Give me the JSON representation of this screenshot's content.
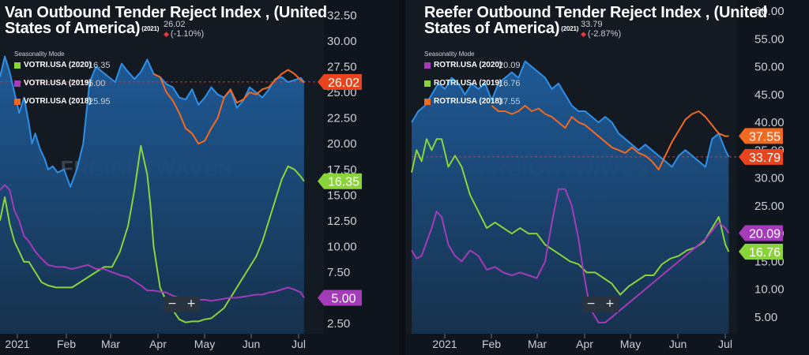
{
  "left": {
    "title_line1": "Van Outbound Tender Reject Index , (United",
    "title_line2": "States of America)",
    "title_tag": "(2021)",
    "current_value": "26.02",
    "current_change": "(-1.10%)",
    "seasonality_label": "Seasonality Mode",
    "legend": [
      {
        "name": "VOTRI.USA (2020)",
        "value": "16.35",
        "color": "#8bd33a"
      },
      {
        "name": "VOTRI.USA (2019)",
        "value": "5.00",
        "color": "#a43bb8"
      },
      {
        "name": "VOTRI.USA (2018)",
        "value": "25.95",
        "color": "#f26a22"
      }
    ],
    "badges": [
      {
        "text": "26.02",
        "color": "#e8441e",
        "value": 26.02
      },
      {
        "text": "16.35",
        "color": "#8bd33a",
        "value": 16.35
      },
      {
        "text": "5.00",
        "color": "#a43bb8",
        "value": 5.0
      }
    ],
    "zoom_minus": "−",
    "zoom_plus": "+"
  },
  "right": {
    "title_line1": "Reefer Outbound Tender Reject Index , (United",
    "title_line2": "States of America)",
    "title_tag": "(2021)",
    "current_value": "33.79",
    "current_change": "(-2.87%)",
    "seasonality_label": "Seasonality Mode",
    "legend": [
      {
        "name": "ROTRI.USA (2020)",
        "value": "20.09",
        "color": "#a43bb8"
      },
      {
        "name": "ROTRI.USA (2019)",
        "value": "16.76",
        "color": "#8bd33a"
      },
      {
        "name": "ROTRI.USA (2018)",
        "value": "37.55",
        "color": "#f26a22"
      }
    ],
    "badges": [
      {
        "text": "37.55",
        "color": "#f26a22",
        "value": 37.55
      },
      {
        "text": "33.79",
        "color": "#e8441e",
        "value": 33.79
      },
      {
        "text": "20.09",
        "color": "#a43bb8",
        "value": 20.09
      },
      {
        "text": "16.76",
        "color": "#8bd33a",
        "value": 16.76
      }
    ],
    "zoom_minus": "−",
    "zoom_plus": "+"
  },
  "watermark": {
    "line1": "FREIGHTWAVES",
    "line2": "SONAR"
  },
  "chart_data": [
    {
      "type": "line",
      "title": "Van Outbound Tender Reject Index , (United States of America)",
      "x_labels": [
        "2021",
        "Feb",
        "Mar",
        "Apr",
        "May",
        "Jun",
        "Jul"
      ],
      "y_ticks": [
        "2.50",
        "5.00",
        "7.50",
        "10.00",
        "12.50",
        "15.00",
        "17.50",
        "20.00",
        "22.50",
        "25.00",
        "27.50",
        "30.00",
        "32.50"
      ],
      "ylim": [
        1.5,
        34
      ],
      "x_range": [
        0,
        195
      ],
      "grid": false,
      "legend_position": "top-left",
      "series": [
        {
          "name": "VOTRI.USA (2021)",
          "color": "#2f8fe8",
          "area": true,
          "x": [
            0,
            3,
            6,
            9,
            12,
            15,
            18,
            20,
            22,
            25,
            28,
            30,
            33,
            36,
            40,
            44,
            48,
            52,
            56,
            60,
            64,
            68,
            72,
            76,
            80,
            84,
            88,
            92,
            96,
            100,
            104,
            108,
            112,
            116,
            120,
            124,
            128,
            132,
            136,
            140,
            144,
            148,
            152,
            156,
            160,
            164,
            168,
            172,
            176,
            180,
            184,
            188,
            190
          ],
          "y": [
            26.5,
            28.5,
            27,
            25,
            23,
            24.5,
            22,
            20,
            21,
            19.5,
            18.5,
            17.5,
            17.8,
            17.2,
            17.5,
            15.8,
            17.5,
            20,
            26,
            27.5,
            27,
            26.5,
            26,
            27.8,
            27,
            26.3,
            27,
            28.2,
            26.8,
            26.5,
            25.8,
            25.5,
            24.5,
            24.3,
            25.3,
            23.8,
            24.5,
            25.5,
            24.8,
            24.5,
            25.2,
            23.5,
            24.2,
            25.5,
            25,
            24.5,
            25.3,
            26.3,
            26.5,
            26,
            26.2,
            26.4,
            26.02
          ]
        },
        {
          "name": "VOTRI.USA (2018)",
          "color": "#f26a22",
          "x": [
            96,
            100,
            104,
            108,
            112,
            116,
            120,
            124,
            128,
            132,
            136,
            140,
            144,
            148,
            152,
            156,
            160,
            164,
            168,
            172,
            176,
            180,
            184,
            188,
            190
          ],
          "y": [
            26.8,
            26.5,
            25,
            24.2,
            23,
            21.5,
            21,
            20,
            20.3,
            21.5,
            22.5,
            24.5,
            25.3,
            24,
            24.3,
            25,
            24.8,
            25.3,
            25.5,
            26.2,
            26.8,
            27.2,
            26.8,
            26.2,
            25.95
          ]
        },
        {
          "name": "VOTRI.USA (2020)",
          "color": "#8bd33a",
          "x": [
            0,
            3,
            6,
            9,
            12,
            15,
            18,
            22,
            26,
            30,
            35,
            40,
            45,
            50,
            55,
            60,
            65,
            70,
            75,
            80,
            84,
            88,
            92,
            94,
            96,
            98,
            100,
            103,
            106,
            108,
            112,
            116,
            120,
            124,
            128,
            132,
            136,
            140,
            144,
            148,
            152,
            156,
            160,
            164,
            168,
            172,
            176,
            180,
            184,
            188,
            190
          ],
          "y": [
            12.5,
            14.8,
            12.2,
            10.5,
            9.5,
            8.5,
            8.5,
            7.5,
            6.5,
            6.2,
            6.0,
            6.0,
            6.0,
            6.5,
            7.0,
            7.5,
            8.0,
            8.0,
            9.5,
            12.0,
            15.5,
            19.8,
            17.0,
            14.0,
            10.0,
            8.0,
            6.0,
            5.0,
            4.5,
            3.8,
            2.9,
            2.6,
            2.7,
            2.7,
            2.9,
            3.0,
            3.5,
            4.0,
            5.0,
            6.0,
            7.0,
            8.0,
            9.0,
            10.5,
            12.5,
            14.5,
            16.5,
            17.8,
            17.5,
            16.8,
            16.35
          ]
        },
        {
          "name": "VOTRI.USA (2019)",
          "color": "#a43bb8",
          "x": [
            0,
            3,
            6,
            9,
            12,
            15,
            18,
            22,
            26,
            30,
            35,
            40,
            45,
            50,
            55,
            60,
            65,
            70,
            75,
            80,
            84,
            88,
            92,
            96,
            100,
            104,
            108,
            112,
            116,
            120,
            124,
            128,
            132,
            136,
            140,
            144,
            148,
            152,
            156,
            160,
            164,
            168,
            172,
            176,
            180,
            184,
            188,
            190
          ],
          "y": [
            15.5,
            16,
            15.5,
            13.5,
            12.5,
            11,
            10.5,
            9.5,
            8.8,
            8.2,
            8.0,
            8.0,
            7.8,
            8.0,
            8.2,
            7.8,
            7.8,
            7.5,
            7.2,
            7.0,
            6.6,
            6.2,
            5.7,
            5.7,
            5.6,
            5.5,
            5.2,
            5.0,
            4.9,
            4.8,
            4.8,
            4.8,
            4.7,
            4.8,
            4.9,
            5.0,
            5.0,
            5.1,
            5.2,
            5.3,
            5.3,
            5.5,
            5.6,
            5.8,
            6.0,
            5.8,
            5.5,
            5.0
          ]
        }
      ]
    },
    {
      "type": "line",
      "title": "Reefer Outbound Tender Reject Index , (United States of America)",
      "x_labels": [
        "2021",
        "Feb",
        "Mar",
        "Apr",
        "May",
        "Jun",
        "Jul"
      ],
      "y_ticks": [
        "5.00",
        "10.00",
        "15.00",
        "20.00",
        "25.00",
        "30.00",
        "35.00",
        "40.00",
        "45.00",
        "50.00",
        "55.00",
        "60.00"
      ],
      "ylim": [
        2,
        62
      ],
      "x_range": [
        0,
        195
      ],
      "grid": false,
      "legend_position": "top-left",
      "series": [
        {
          "name": "ROTRI.USA (2021)",
          "color": "#2f8fe8",
          "area": true,
          "x": [
            0,
            4,
            8,
            12,
            16,
            20,
            24,
            28,
            32,
            36,
            40,
            44,
            48,
            52,
            56,
            60,
            64,
            68,
            72,
            76,
            80,
            84,
            88,
            92,
            96,
            100,
            104,
            108,
            112,
            116,
            120,
            124,
            128,
            132,
            136,
            140,
            144,
            148,
            152,
            156,
            160,
            164,
            168,
            172,
            176,
            180,
            184,
            188,
            190
          ],
          "y": [
            40,
            42,
            43,
            45,
            47,
            46,
            48,
            47,
            45,
            47,
            46,
            47,
            44,
            47,
            48,
            49,
            48,
            51,
            50,
            49,
            48,
            46,
            47,
            45,
            43,
            42,
            42,
            41,
            40,
            41,
            40,
            38,
            37,
            36,
            35,
            36,
            35,
            34,
            33,
            32,
            34,
            35,
            34,
            33,
            32,
            37,
            38,
            35,
            33.79
          ]
        },
        {
          "name": "ROTRI.USA (2018)",
          "color": "#f26a22",
          "x": [
            48,
            52,
            56,
            60,
            64,
            68,
            72,
            76,
            80,
            84,
            88,
            92,
            96,
            100,
            104,
            108,
            112,
            116,
            120,
            124,
            128,
            132,
            136,
            140,
            144,
            148,
            152,
            156,
            160,
            164,
            168,
            172,
            176,
            180,
            184,
            188,
            190
          ],
          "y": [
            43,
            42,
            42,
            41.5,
            42,
            43,
            42,
            42.5,
            41.5,
            41,
            40,
            39,
            41,
            40,
            39.5,
            38.5,
            37.5,
            36.5,
            35.5,
            35,
            34.5,
            35.5,
            34.5,
            34,
            33,
            31.5,
            34,
            36.5,
            38.5,
            40.5,
            41.5,
            42,
            41,
            39.5,
            38,
            37.5,
            37.55
          ]
        },
        {
          "name": "ROTRI.USA (2019)",
          "color": "#8bd33a",
          "x": [
            0,
            3,
            6,
            9,
            12,
            15,
            18,
            22,
            26,
            30,
            35,
            40,
            45,
            50,
            55,
            60,
            65,
            70,
            75,
            80,
            85,
            90,
            95,
            100,
            105,
            110,
            115,
            120,
            125,
            130,
            135,
            140,
            145,
            150,
            155,
            160,
            165,
            170,
            175,
            180,
            184,
            188,
            190
          ],
          "y": [
            31,
            35,
            33,
            37,
            35,
            37,
            37,
            32,
            34,
            32,
            27,
            24,
            21,
            22,
            21,
            20,
            21,
            20,
            20,
            18,
            17,
            16,
            15,
            14.5,
            13,
            13,
            12,
            11,
            9,
            10.5,
            11.5,
            12.5,
            12.5,
            14.5,
            15.5,
            16,
            17,
            17.5,
            18.5,
            21,
            23,
            18,
            16.76
          ]
        },
        {
          "name": "ROTRI.USA (2020)",
          "color": "#a43bb8",
          "x": [
            0,
            3,
            6,
            9,
            12,
            15,
            18,
            22,
            26,
            30,
            35,
            40,
            45,
            50,
            55,
            60,
            65,
            70,
            75,
            80,
            84,
            88,
            92,
            96,
            100,
            103,
            106,
            108,
            112,
            116,
            120,
            124,
            128,
            132,
            136,
            140,
            144,
            148,
            152,
            156,
            160,
            164,
            168,
            172,
            176,
            180,
            184,
            188,
            190
          ],
          "y": [
            17,
            15.5,
            16,
            18.5,
            21,
            24,
            23,
            18,
            16,
            15,
            17,
            16,
            13.5,
            14,
            13,
            12.5,
            13,
            12.5,
            12,
            15,
            22,
            28,
            28,
            25,
            19,
            13,
            8,
            6,
            4,
            4,
            5,
            6,
            7,
            8,
            9,
            10,
            11,
            12,
            13,
            14,
            15,
            16,
            17,
            18,
            19,
            20.5,
            22,
            21,
            20.09
          ]
        }
      ]
    }
  ]
}
